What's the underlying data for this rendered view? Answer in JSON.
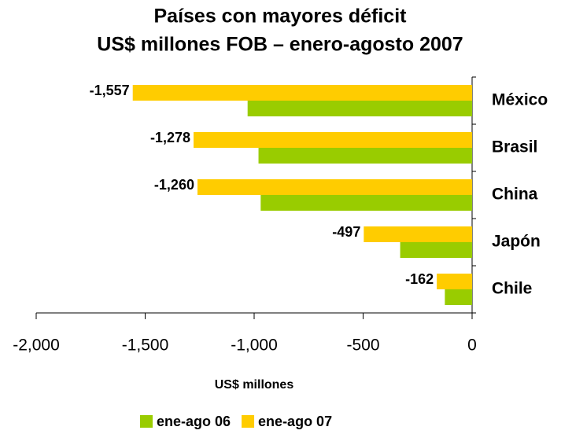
{
  "chart_data": {
    "type": "hbar",
    "title": "Países con mayores déficit",
    "subtitle": "US$ millones FOB – enero-agosto 2007",
    "categories": [
      "México",
      "Brasil",
      "China",
      "Japón",
      "Chile"
    ],
    "series": [
      {
        "name": "ene-ago 06",
        "color": "#99cc00",
        "values": [
          -1030,
          -980,
          -970,
          -330,
          -125
        ]
      },
      {
        "name": "ene-ago 07",
        "color": "#ffcc00",
        "values": [
          -1557,
          -1278,
          -1260,
          -497,
          -162
        ],
        "value_labels": [
          "-1,557",
          "-1,278",
          "-1,260",
          "-497",
          "-162"
        ]
      }
    ],
    "xlim": [
      -2000,
      0
    ],
    "xticks": [
      {
        "value": -2000,
        "label": "-2,000"
      },
      {
        "value": -1500,
        "label": "-1,500"
      },
      {
        "value": -1000,
        "label": "-1,000"
      },
      {
        "value": -500,
        "label": "-500"
      },
      0
    ],
    "xlabel": "US$ millones",
    "legend": "bottom"
  }
}
